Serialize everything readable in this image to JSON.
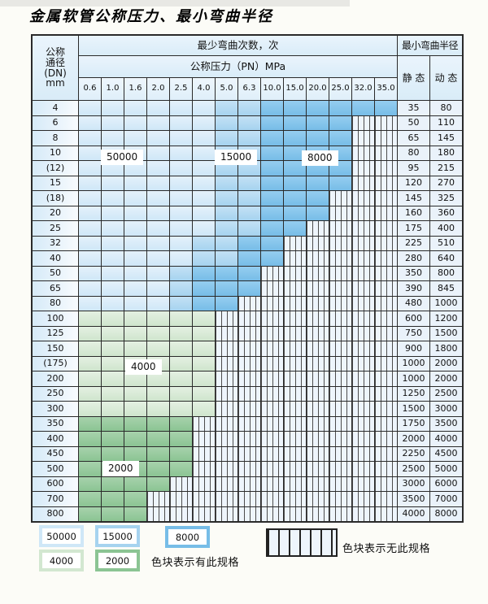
{
  "title": "金属软管公称压力、最小弯曲半径",
  "colors": {
    "blue_50000": "#cfe7f7",
    "blue_15000": "#a6d3ef",
    "blue_8000": "#77bde7",
    "green_4000": "#cfe5cd",
    "green_2000": "#8bc493",
    "no_spec_bg": "#eef5fc",
    "grid_line": "#2a2a2a"
  },
  "table": {
    "dn_header": "公称\n通径\n(DN)\nmm",
    "cycles_header": "最少弯曲次数，次",
    "pressure_header": "公称压力（PN）MPa",
    "radius_header": "最小弯曲半径",
    "static_header": "静 态",
    "dynamic_header": "动 态",
    "pressures": [
      "0.6",
      "1.0",
      "1.6",
      "2.0",
      "2.5",
      "4.0",
      "5.0",
      "6.3",
      "10.0",
      "15.0",
      "20.0",
      "25.0",
      "32.0",
      "35.0"
    ],
    "rows": [
      {
        "dn": "4",
        "cells": [
          [
            "b50",
            6
          ],
          [
            "b15",
            2
          ],
          [
            "b8",
            6
          ]
        ],
        "static": "35",
        "dynamic": "80"
      },
      {
        "dn": "6",
        "cells": [
          [
            "b50",
            6
          ],
          [
            "b15",
            2
          ],
          [
            "b8",
            4
          ],
          [
            "x",
            2
          ]
        ],
        "static": "50",
        "dynamic": "110"
      },
      {
        "dn": "8",
        "cells": [
          [
            "b50",
            6
          ],
          [
            "b15",
            2
          ],
          [
            "b8",
            4
          ],
          [
            "x",
            2
          ]
        ],
        "static": "65",
        "dynamic": "145"
      },
      {
        "dn": "10",
        "cells": [
          [
            "b50",
            6
          ],
          [
            "b15",
            2
          ],
          [
            "b8",
            4
          ],
          [
            "x",
            2
          ]
        ],
        "static": "80",
        "dynamic": "180"
      },
      {
        "dn": "(12)",
        "cells": [
          [
            "b50",
            6
          ],
          [
            "b15",
            2
          ],
          [
            "b8",
            4
          ],
          [
            "x",
            2
          ]
        ],
        "static": "95",
        "dynamic": "215"
      },
      {
        "dn": "15",
        "cells": [
          [
            "b50",
            6
          ],
          [
            "b15",
            2
          ],
          [
            "b8",
            4
          ],
          [
            "x",
            2
          ]
        ],
        "static": "120",
        "dynamic": "270"
      },
      {
        "dn": "(18)",
        "cells": [
          [
            "b50",
            6
          ],
          [
            "b15",
            2
          ],
          [
            "b8",
            3
          ],
          [
            "x",
            3
          ]
        ],
        "static": "145",
        "dynamic": "325"
      },
      {
        "dn": "20",
        "cells": [
          [
            "b50",
            6
          ],
          [
            "b15",
            2
          ],
          [
            "b8",
            3
          ],
          [
            "x",
            3
          ]
        ],
        "static": "160",
        "dynamic": "360"
      },
      {
        "dn": "25",
        "cells": [
          [
            "b50",
            6
          ],
          [
            "b15",
            2
          ],
          [
            "b8",
            2
          ],
          [
            "x",
            4
          ]
        ],
        "static": "175",
        "dynamic": "400"
      },
      {
        "dn": "32",
        "cells": [
          [
            "b50",
            5
          ],
          [
            "b15",
            2
          ],
          [
            "b8",
            2
          ],
          [
            "x",
            5
          ]
        ],
        "static": "225",
        "dynamic": "510"
      },
      {
        "dn": "40",
        "cells": [
          [
            "b50",
            5
          ],
          [
            "b15",
            2
          ],
          [
            "b8",
            2
          ],
          [
            "x",
            5
          ]
        ],
        "static": "280",
        "dynamic": "640"
      },
      {
        "dn": "50",
        "cells": [
          [
            "b50",
            4
          ],
          [
            "b15",
            1
          ],
          [
            "b8",
            3
          ],
          [
            "x",
            6
          ]
        ],
        "static": "350",
        "dynamic": "800"
      },
      {
        "dn": "65",
        "cells": [
          [
            "b50",
            4
          ],
          [
            "b15",
            1
          ],
          [
            "b8",
            3
          ],
          [
            "x",
            6
          ]
        ],
        "static": "390",
        "dynamic": "845"
      },
      {
        "dn": "80",
        "cells": [
          [
            "b50",
            4
          ],
          [
            "b15",
            1
          ],
          [
            "b8",
            2
          ],
          [
            "x",
            7
          ]
        ],
        "static": "480",
        "dynamic": "1000"
      },
      {
        "dn": "100",
        "cells": [
          [
            "g4",
            6
          ],
          [
            "x",
            8
          ]
        ],
        "static": "600",
        "dynamic": "1200"
      },
      {
        "dn": "125",
        "cells": [
          [
            "g4",
            6
          ],
          [
            "x",
            8
          ]
        ],
        "static": "750",
        "dynamic": "1500"
      },
      {
        "dn": "150",
        "cells": [
          [
            "g4",
            6
          ],
          [
            "x",
            8
          ]
        ],
        "static": "900",
        "dynamic": "1800"
      },
      {
        "dn": "(175)",
        "cells": [
          [
            "g4",
            6
          ],
          [
            "x",
            8
          ]
        ],
        "static": "1000",
        "dynamic": "2000"
      },
      {
        "dn": "200",
        "cells": [
          [
            "g4",
            6
          ],
          [
            "x",
            8
          ]
        ],
        "static": "1000",
        "dynamic": "2000"
      },
      {
        "dn": "250",
        "cells": [
          [
            "g4",
            6
          ],
          [
            "x",
            8
          ]
        ],
        "static": "1250",
        "dynamic": "2500"
      },
      {
        "dn": "300",
        "cells": [
          [
            "g4",
            6
          ],
          [
            "x",
            8
          ]
        ],
        "static": "1500",
        "dynamic": "3000"
      },
      {
        "dn": "350",
        "cells": [
          [
            "g2",
            5
          ],
          [
            "x",
            9
          ]
        ],
        "static": "1750",
        "dynamic": "3500"
      },
      {
        "dn": "400",
        "cells": [
          [
            "g2",
            5
          ],
          [
            "x",
            9
          ]
        ],
        "static": "2000",
        "dynamic": "4000"
      },
      {
        "dn": "450",
        "cells": [
          [
            "g2",
            5
          ],
          [
            "x",
            9
          ]
        ],
        "static": "2250",
        "dynamic": "4500"
      },
      {
        "dn": "500",
        "cells": [
          [
            "g2",
            5
          ],
          [
            "x",
            9
          ]
        ],
        "static": "2500",
        "dynamic": "5000"
      },
      {
        "dn": "600",
        "cells": [
          [
            "g2",
            4
          ],
          [
            "x",
            10
          ]
        ],
        "static": "3000",
        "dynamic": "6000"
      },
      {
        "dn": "700",
        "cells": [
          [
            "g2",
            3
          ],
          [
            "x",
            11
          ]
        ],
        "static": "3500",
        "dynamic": "7000"
      },
      {
        "dn": "800",
        "cells": [
          [
            "g2",
            3
          ],
          [
            "x",
            11
          ]
        ],
        "static": "4000",
        "dynamic": "8000"
      }
    ]
  },
  "region_labels": {
    "l50000": "50000",
    "l15000": "15000",
    "l8000": "8000",
    "l4000": "4000",
    "l2000": "2000"
  },
  "legend": {
    "swatches": [
      {
        "label": "50000"
      },
      {
        "label": "15000"
      },
      {
        "label": "8000"
      },
      {
        "label": "4000"
      },
      {
        "label": "2000"
      }
    ],
    "has_spec_text": "色块表示有此规格",
    "no_spec_text": "色块表示无此规格"
  }
}
